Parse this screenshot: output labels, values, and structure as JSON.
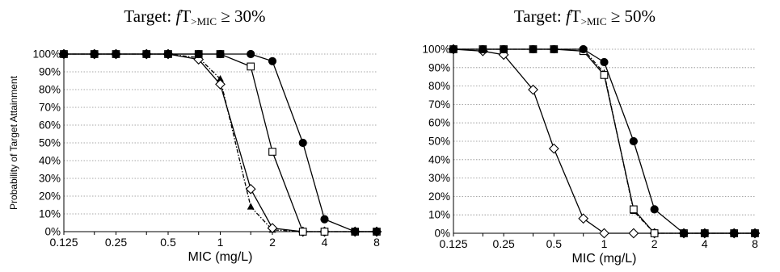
{
  "chart_data": [
    {
      "type": "line",
      "title_prefix": "Target: ",
      "title_f": "f",
      "title_T": "T",
      "title_sub": ">MIC",
      "title_suffix": " ≥ 30%",
      "xlabel": "MIC (mg/L)",
      "ylabel": "Probability of Target Attainment",
      "x_scale": "log2",
      "x_ticks": [
        "0.125",
        "0.25",
        "0.5",
        "1",
        "2",
        "4",
        "8"
      ],
      "x": [
        0.125,
        0.1875,
        0.25,
        0.375,
        0.5,
        0.75,
        1,
        1.5,
        2,
        3,
        4,
        6,
        8
      ],
      "y_ticks": [
        "0%",
        "10%",
        "20%",
        "30%",
        "40%",
        "50%",
        "60%",
        "70%",
        "80%",
        "90%",
        "100%"
      ],
      "ylim": [
        0,
        100
      ],
      "grid": "horizontal dotted",
      "series": [
        {
          "marker": "triangle-filled",
          "dash": "dashdot",
          "values": [
            100,
            100,
            100,
            100,
            100,
            98,
            86,
            14,
            1,
            0,
            0,
            0,
            0
          ]
        },
        {
          "marker": "diamond-open",
          "dash": "solid",
          "values": [
            100,
            100,
            100,
            100,
            100,
            97,
            83,
            24,
            2,
            0,
            0,
            0,
            0
          ]
        },
        {
          "marker": "square-open",
          "dash": "solid",
          "values": [
            100,
            100,
            100,
            100,
            100,
            100,
            100,
            93,
            45,
            0,
            0,
            0,
            0
          ]
        },
        {
          "marker": "circle-filled",
          "dash": "solid",
          "values": [
            100,
            100,
            100,
            100,
            100,
            100,
            100,
            100,
            96,
            50,
            7,
            0,
            0
          ]
        }
      ]
    },
    {
      "type": "line",
      "title_prefix": "Target: ",
      "title_f": "f",
      "title_T": "T",
      "title_sub": ">MIC",
      "title_suffix": " ≥ 50%",
      "xlabel": "MIC (mg/L)",
      "ylabel": "",
      "x_scale": "log2",
      "x_ticks": [
        "0.125",
        "0.25",
        "0.5",
        "1",
        "2",
        "4",
        "8"
      ],
      "x": [
        0.125,
        0.1875,
        0.25,
        0.375,
        0.5,
        0.75,
        1,
        1.5,
        2,
        3,
        4,
        6,
        8
      ],
      "y_ticks": [
        "0%",
        "10%",
        "20%",
        "30%",
        "40%",
        "50%",
        "60%",
        "70%",
        "80%",
        "90%",
        "100%"
      ],
      "ylim": [
        0,
        100
      ],
      "grid": "horizontal dotted",
      "series": [
        {
          "marker": "diamond-open",
          "dash": "solid",
          "values": [
            100,
            99,
            97,
            78,
            46,
            8,
            0,
            0,
            0,
            0,
            0,
            0,
            0
          ]
        },
        {
          "marker": "triangle-filled",
          "dash": "dashdot",
          "values": [
            100,
            100,
            100,
            100,
            100,
            100,
            87,
            12,
            0,
            0,
            0,
            0,
            0
          ]
        },
        {
          "marker": "square-open",
          "dash": "solid",
          "values": [
            100,
            100,
            100,
            100,
            100,
            99,
            86,
            13,
            0,
            0,
            0,
            0,
            0
          ]
        },
        {
          "marker": "circle-filled",
          "dash": "solid",
          "values": [
            100,
            100,
            100,
            100,
            100,
            100,
            93,
            50,
            13,
            0,
            0,
            0,
            0
          ]
        }
      ]
    }
  ]
}
